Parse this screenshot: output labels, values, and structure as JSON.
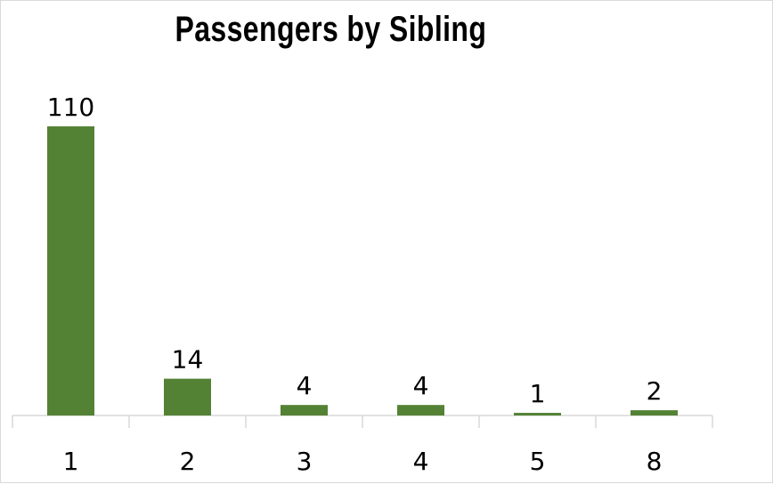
{
  "chart_data": {
    "type": "bar",
    "title": "Passengers by Sibling",
    "categories": [
      "1",
      "2",
      "3",
      "4",
      "5",
      "8"
    ],
    "values": [
      110,
      14,
      4,
      4,
      1,
      2
    ],
    "xlabel": "",
    "ylabel": "",
    "ylim": [
      0,
      110
    ],
    "grid": false,
    "legend": "none",
    "bar_color": "#548235",
    "axis_color": "#d9d9d9"
  }
}
